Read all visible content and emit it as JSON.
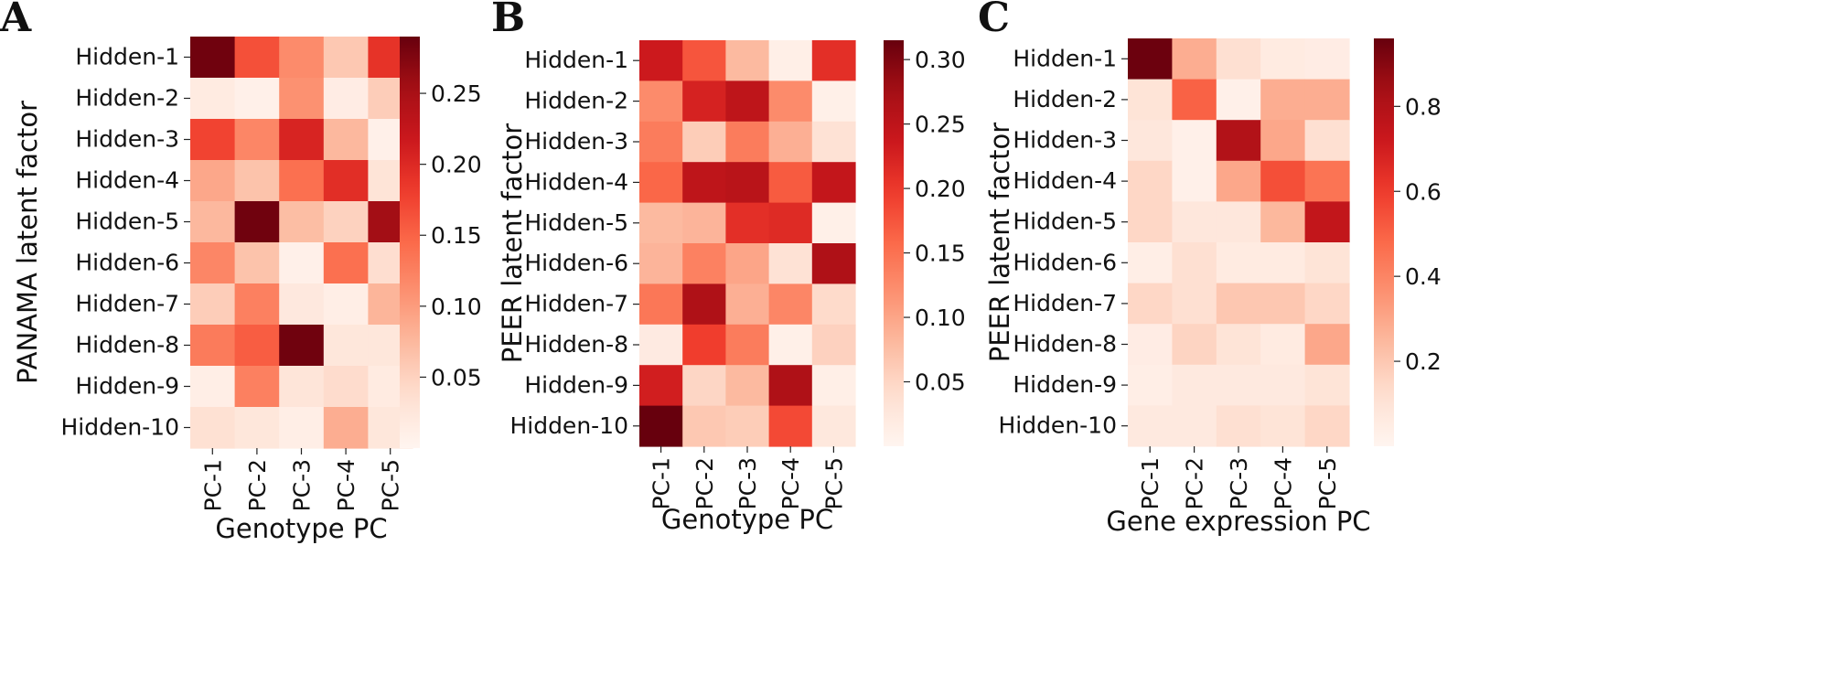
{
  "chart_data": [
    {
      "type": "heatmap",
      "panel_label": "A",
      "xlabel": "Genotype PC",
      "ylabel": "PANAMA latent factor",
      "x_categories": [
        "PC-1",
        "PC-2",
        "PC-3",
        "PC-4",
        "PC-5"
      ],
      "y_categories": [
        "Hidden-1",
        "Hidden-2",
        "Hidden-3",
        "Hidden-4",
        "Hidden-5",
        "Hidden-6",
        "Hidden-7",
        "Hidden-8",
        "Hidden-9",
        "Hidden-10"
      ],
      "values": [
        [
          0.285,
          0.165,
          0.115,
          0.06,
          0.19
        ],
        [
          0.018,
          0.008,
          0.11,
          0.015,
          0.055
        ],
        [
          0.175,
          0.12,
          0.205,
          0.075,
          0.008
        ],
        [
          0.09,
          0.065,
          0.14,
          0.195,
          0.03
        ],
        [
          0.075,
          0.285,
          0.07,
          0.05,
          0.255
        ],
        [
          0.12,
          0.065,
          0.008,
          0.14,
          0.038
        ],
        [
          0.055,
          0.125,
          0.022,
          0.012,
          0.078
        ],
        [
          0.13,
          0.155,
          0.285,
          0.025,
          0.025
        ],
        [
          0.012,
          0.125,
          0.028,
          0.04,
          0.018
        ],
        [
          0.035,
          0.025,
          0.012,
          0.085,
          0.025
        ]
      ],
      "vmin": 0.0,
      "vmax": 0.29,
      "colorbar_ticks": [
        0.05,
        0.1,
        0.15,
        0.2,
        0.25
      ],
      "colorbar_tick_labels": [
        "0.05",
        "0.10",
        "0.15",
        "0.20",
        "0.25"
      ],
      "colormap": "Reds"
    },
    {
      "type": "heatmap",
      "panel_label": "B",
      "xlabel": "Genotype PC",
      "ylabel": "PEER latent factor",
      "x_categories": [
        "PC-1",
        "PC-2",
        "PC-3",
        "PC-4",
        "PC-5"
      ],
      "y_categories": [
        "Hidden-1",
        "Hidden-2",
        "Hidden-3",
        "Hidden-4",
        "Hidden-5",
        "Hidden-6",
        "Hidden-7",
        "Hidden-8",
        "Hidden-9",
        "Hidden-10"
      ],
      "values": [
        [
          0.235,
          0.175,
          0.08,
          0.012,
          0.21
        ],
        [
          0.125,
          0.225,
          0.25,
          0.125,
          0.01
        ],
        [
          0.14,
          0.06,
          0.14,
          0.09,
          0.035
        ],
        [
          0.16,
          0.25,
          0.255,
          0.17,
          0.245
        ],
        [
          0.08,
          0.085,
          0.21,
          0.215,
          0.01
        ],
        [
          0.085,
          0.135,
          0.1,
          0.035,
          0.265
        ],
        [
          0.145,
          0.265,
          0.09,
          0.13,
          0.045
        ],
        [
          0.02,
          0.195,
          0.14,
          0.01,
          0.055
        ],
        [
          0.23,
          0.05,
          0.08,
          0.265,
          0.012
        ],
        [
          0.315,
          0.065,
          0.06,
          0.185,
          0.025
        ]
      ],
      "vmin": 0.0,
      "vmax": 0.315,
      "colorbar_ticks": [
        0.05,
        0.1,
        0.15,
        0.2,
        0.25,
        0.3
      ],
      "colorbar_tick_labels": [
        "0.05",
        "0.10",
        "0.15",
        "0.20",
        "0.25",
        "0.30"
      ],
      "colormap": "Reds"
    },
    {
      "type": "heatmap",
      "panel_label": "C",
      "xlabel": "Gene expression PC",
      "ylabel": "PEER latent factor",
      "x_categories": [
        "PC-1",
        "PC-2",
        "PC-3",
        "PC-4",
        "PC-5"
      ],
      "y_categories": [
        "Hidden-1",
        "Hidden-2",
        "Hidden-3",
        "Hidden-4",
        "Hidden-5",
        "Hidden-6",
        "Hidden-7",
        "Hidden-8",
        "Hidden-9",
        "Hidden-10"
      ],
      "values": [
        [
          0.95,
          0.28,
          0.12,
          0.06,
          0.05
        ],
        [
          0.1,
          0.5,
          0.03,
          0.28,
          0.28
        ],
        [
          0.08,
          0.03,
          0.8,
          0.3,
          0.12
        ],
        [
          0.15,
          0.03,
          0.3,
          0.55,
          0.45
        ],
        [
          0.15,
          0.08,
          0.08,
          0.25,
          0.75
        ],
        [
          0.04,
          0.12,
          0.06,
          0.06,
          0.1
        ],
        [
          0.15,
          0.12,
          0.2,
          0.2,
          0.15
        ],
        [
          0.05,
          0.16,
          0.1,
          0.06,
          0.3
        ],
        [
          0.04,
          0.07,
          0.07,
          0.07,
          0.1
        ],
        [
          0.07,
          0.07,
          0.12,
          0.1,
          0.15
        ]
      ],
      "vmin": 0.0,
      "vmax": 0.96,
      "colorbar_ticks": [
        0.2,
        0.4,
        0.6,
        0.8
      ],
      "colorbar_tick_labels": [
        "0.2",
        "0.4",
        "0.6",
        "0.8"
      ],
      "colormap": "Reds"
    }
  ]
}
